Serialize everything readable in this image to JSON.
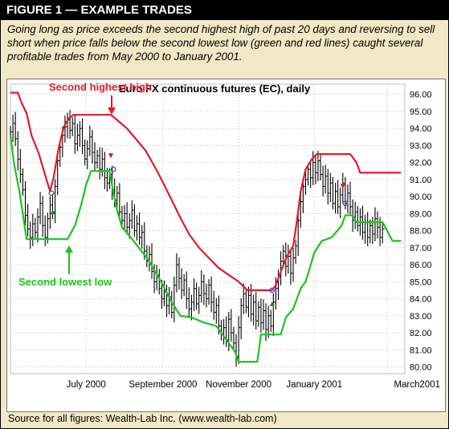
{
  "header": {
    "title": "FIGURE 1 — EXAMPLE TRADES"
  },
  "caption": "Going long as price exceeds the second highest high of past 20 days and reversing to sell short when price falls below the second lowest low (green and red lines) caught several profitable trades from May 2000 to January 2001.",
  "source": "Source for all figures: Wealth-Lab Inc. (www.wealth-lab.com)",
  "colors": {
    "upper_channel": "#e8182e",
    "lower_channel": "#1fc21f",
    "price_bars": "#000000",
    "signal_marker": "#5a50c8",
    "background": "#f1e9c6"
  },
  "chart_data": {
    "type": "line",
    "title": "Euro FX continuous futures (EC), daily",
    "annotations": [
      {
        "text": "Second highest high",
        "color": "#e8182e"
      },
      {
        "text": "Second lowest low",
        "color": "#1fc21f"
      }
    ],
    "x_tick_labels": [
      "July 2000",
      "September 2000",
      "November 2000",
      "January 2001",
      "March2001"
    ],
    "y_ticks": [
      80,
      81,
      82,
      83,
      84,
      85,
      86,
      87,
      88,
      89,
      90,
      91,
      92,
      93,
      94,
      95,
      96
    ],
    "y_tick_labels": [
      "80.00",
      "81.00",
      "82.00",
      "83.00",
      "84.00",
      "85.00",
      "86.00",
      "87.00",
      "88.00",
      "89.00",
      "90.00",
      "91.00",
      "92.00",
      "93.00",
      "94.00",
      "95.00",
      "96.00"
    ],
    "ylim": [
      79.6,
      96.6
    ],
    "x_range": [
      "2000-05-01",
      "2001-03-15"
    ],
    "x_tick_dates": [
      "2000-07-01",
      "2000-09-01",
      "2000-11-01",
      "2001-01-01",
      "2001-03-01"
    ],
    "series": [
      {
        "name": "Second highest high",
        "color": "#e8182e",
        "points": [
          [
            "2000-05-01",
            96.1
          ],
          [
            "2000-05-07",
            96.1
          ],
          [
            "2000-05-10",
            95.5
          ],
          [
            "2000-05-14",
            94.9
          ],
          [
            "2000-05-18",
            93.6
          ],
          [
            "2000-05-24",
            92.5
          ],
          [
            "2000-05-28",
            91.5
          ],
          [
            "2000-06-02",
            90.3
          ],
          [
            "2000-06-05",
            91.2
          ],
          [
            "2000-06-09",
            92.9
          ],
          [
            "2000-06-13",
            94.1
          ],
          [
            "2000-06-17",
            94.6
          ],
          [
            "2000-06-21",
            94.8
          ],
          [
            "2000-07-21",
            94.8
          ],
          [
            "2000-07-26",
            94.5
          ],
          [
            "2000-08-03",
            94.0
          ],
          [
            "2000-08-10",
            93.4
          ],
          [
            "2000-08-18",
            92.7
          ],
          [
            "2000-08-28",
            91.4
          ],
          [
            "2000-09-06",
            90.1
          ],
          [
            "2000-09-14",
            88.9
          ],
          [
            "2000-09-22",
            87.8
          ],
          [
            "2000-09-30",
            87.0
          ],
          [
            "2000-10-08",
            86.4
          ],
          [
            "2000-10-16",
            85.8
          ],
          [
            "2000-10-22",
            85.5
          ],
          [
            "2000-11-01",
            85.0
          ],
          [
            "2000-11-08",
            84.5
          ],
          [
            "2000-11-28",
            84.5
          ],
          [
            "2000-12-01",
            84.8
          ],
          [
            "2000-12-05",
            85.6
          ],
          [
            "2000-12-10",
            86.5
          ],
          [
            "2000-12-15",
            87.1
          ],
          [
            "2000-12-18",
            88.6
          ],
          [
            "2000-12-21",
            90.3
          ],
          [
            "2000-12-25",
            91.6
          ],
          [
            "2000-12-30",
            92.2
          ],
          [
            "2001-01-03",
            92.5
          ],
          [
            "2001-01-30",
            92.5
          ],
          [
            "2001-02-04",
            92.0
          ],
          [
            "2001-02-07",
            91.4
          ],
          [
            "2001-03-12",
            91.4
          ]
        ]
      },
      {
        "name": "Second lowest low",
        "color": "#1fc21f",
        "points": [
          [
            "2000-05-01",
            93.6
          ],
          [
            "2000-05-04",
            91.9
          ],
          [
            "2000-05-08",
            90.4
          ],
          [
            "2000-05-11",
            89.0
          ],
          [
            "2000-05-14",
            87.5
          ],
          [
            "2000-06-16",
            87.5
          ],
          [
            "2000-06-22",
            88.3
          ],
          [
            "2000-06-27",
            89.5
          ],
          [
            "2000-07-01",
            90.7
          ],
          [
            "2000-07-05",
            91.5
          ],
          [
            "2000-07-20",
            91.5
          ],
          [
            "2000-07-23",
            90.2
          ],
          [
            "2000-07-26",
            89.2
          ],
          [
            "2000-07-30",
            88.2
          ],
          [
            "2000-08-06",
            87.6
          ],
          [
            "2000-08-20",
            86.3
          ],
          [
            "2000-09-01",
            84.8
          ],
          [
            "2000-09-08",
            83.8
          ],
          [
            "2000-09-15",
            83.0
          ],
          [
            "2000-09-24",
            82.9
          ],
          [
            "2000-10-04",
            82.6
          ],
          [
            "2000-10-14",
            82.4
          ],
          [
            "2000-10-22",
            81.6
          ],
          [
            "2000-10-29",
            80.9
          ],
          [
            "2000-11-01",
            80.3
          ],
          [
            "2000-11-16",
            80.3
          ],
          [
            "2000-11-19",
            81.9
          ],
          [
            "2000-12-05",
            81.9
          ],
          [
            "2000-12-09",
            82.9
          ],
          [
            "2000-12-15",
            83.4
          ],
          [
            "2000-12-21",
            84.6
          ],
          [
            "2000-12-25",
            85.0
          ],
          [
            "2001-01-01",
            86.7
          ],
          [
            "2001-01-07",
            87.4
          ],
          [
            "2001-01-15",
            87.6
          ],
          [
            "2001-01-23",
            88.3
          ],
          [
            "2001-01-26",
            88.9
          ],
          [
            "2001-02-01",
            88.9
          ],
          [
            "2001-02-04",
            88.5
          ],
          [
            "2001-02-25",
            88.5
          ],
          [
            "2001-03-05",
            87.4
          ],
          [
            "2001-03-12",
            87.4
          ]
        ]
      },
      {
        "name": "",
        "type": "ohlc-close",
        "color": "#000000",
        "points": [
          [
            "2000-05-01",
            93.8
          ],
          [
            "2000-05-03",
            94.3
          ],
          [
            "2000-05-05",
            93.4
          ],
          [
            "2000-05-07",
            92.2
          ],
          [
            "2000-05-09",
            91.3
          ],
          [
            "2000-05-11",
            90.4
          ],
          [
            "2000-05-13",
            88.9
          ],
          [
            "2000-05-15",
            88.1
          ],
          [
            "2000-05-17",
            87.6
          ],
          [
            "2000-05-19",
            88.4
          ],
          [
            "2000-05-21",
            87.9
          ],
          [
            "2000-05-23",
            88.8
          ],
          [
            "2000-05-25",
            89.6
          ],
          [
            "2000-05-27",
            88.3
          ],
          [
            "2000-05-29",
            87.6
          ],
          [
            "2000-05-31",
            88.7
          ],
          [
            "2000-06-02",
            89.5
          ],
          [
            "2000-06-04",
            89.1
          ],
          [
            "2000-06-06",
            90.6
          ],
          [
            "2000-06-08",
            92.1
          ],
          [
            "2000-06-10",
            92.9
          ],
          [
            "2000-06-12",
            93.6
          ],
          [
            "2000-06-14",
            94.1
          ],
          [
            "2000-06-16",
            94.5
          ],
          [
            "2000-06-18",
            93.9
          ],
          [
            "2000-06-20",
            94.3
          ],
          [
            "2000-06-22",
            93.1
          ],
          [
            "2000-06-24",
            93.6
          ],
          [
            "2000-06-26",
            94.0
          ],
          [
            "2000-06-28",
            93.0
          ],
          [
            "2000-06-30",
            92.2
          ],
          [
            "2000-07-02",
            92.8
          ],
          [
            "2000-07-04",
            93.5
          ],
          [
            "2000-07-06",
            92.6
          ],
          [
            "2000-07-08",
            92.0
          ],
          [
            "2000-07-10",
            92.4
          ],
          [
            "2000-07-12",
            91.6
          ],
          [
            "2000-07-14",
            92.2
          ],
          [
            "2000-07-16",
            91.1
          ],
          [
            "2000-07-18",
            90.8
          ],
          [
            "2000-07-20",
            91.3
          ],
          [
            "2000-07-22",
            90.4
          ],
          [
            "2000-07-24",
            89.8
          ],
          [
            "2000-07-26",
            90.2
          ],
          [
            "2000-07-28",
            89.1
          ],
          [
            "2000-07-30",
            88.6
          ],
          [
            "2000-08-01",
            89.0
          ],
          [
            "2000-08-03",
            88.2
          ],
          [
            "2000-08-05",
            88.6
          ],
          [
            "2000-08-07",
            89.2
          ],
          [
            "2000-08-09",
            88.0
          ],
          [
            "2000-08-11",
            88.4
          ],
          [
            "2000-08-13",
            87.6
          ],
          [
            "2000-08-15",
            87.9
          ],
          [
            "2000-08-17",
            86.8
          ],
          [
            "2000-08-19",
            86.2
          ],
          [
            "2000-08-21",
            86.6
          ],
          [
            "2000-08-23",
            85.6
          ],
          [
            "2000-08-25",
            85.0
          ],
          [
            "2000-08-27",
            85.4
          ],
          [
            "2000-08-29",
            84.6
          ],
          [
            "2000-08-31",
            84.0
          ],
          [
            "2000-09-02",
            84.4
          ],
          [
            "2000-09-04",
            83.6
          ],
          [
            "2000-09-06",
            84.1
          ],
          [
            "2000-09-08",
            83.2
          ],
          [
            "2000-09-10",
            84.8
          ],
          [
            "2000-09-12",
            86.0
          ],
          [
            "2000-09-14",
            85.2
          ],
          [
            "2000-09-16",
            84.5
          ],
          [
            "2000-09-18",
            85.1
          ],
          [
            "2000-09-20",
            84.0
          ],
          [
            "2000-09-22",
            83.4
          ],
          [
            "2000-09-24",
            83.8
          ],
          [
            "2000-09-26",
            84.6
          ],
          [
            "2000-09-28",
            83.7
          ],
          [
            "2000-09-30",
            84.2
          ],
          [
            "2000-10-02",
            85.0
          ],
          [
            "2000-10-04",
            84.3
          ],
          [
            "2000-10-06",
            84.0
          ],
          [
            "2000-10-08",
            84.8
          ],
          [
            "2000-10-10",
            83.8
          ],
          [
            "2000-10-12",
            83.2
          ],
          [
            "2000-10-14",
            83.6
          ],
          [
            "2000-10-16",
            82.4
          ],
          [
            "2000-10-18",
            81.9
          ],
          [
            "2000-10-20",
            82.3
          ],
          [
            "2000-10-22",
            81.6
          ],
          [
            "2000-10-24",
            82.8
          ],
          [
            "2000-10-26",
            82.0
          ],
          [
            "2000-10-28",
            81.4
          ],
          [
            "2000-10-30",
            80.6
          ],
          [
            "2000-11-01",
            82.3
          ],
          [
            "2000-11-03",
            83.6
          ],
          [
            "2000-11-05",
            84.3
          ],
          [
            "2000-11-07",
            83.5
          ],
          [
            "2000-11-09",
            84.2
          ],
          [
            "2000-11-11",
            83.1
          ],
          [
            "2000-11-13",
            83.8
          ],
          [
            "2000-11-15",
            82.7
          ],
          [
            "2000-11-17",
            83.5
          ],
          [
            "2000-11-19",
            82.6
          ],
          [
            "2000-11-21",
            83.3
          ],
          [
            "2000-11-23",
            82.2
          ],
          [
            "2000-11-25",
            83.0
          ],
          [
            "2000-11-27",
            82.4
          ],
          [
            "2000-11-29",
            83.8
          ],
          [
            "2000-12-01",
            84.6
          ],
          [
            "2000-12-03",
            85.3
          ],
          [
            "2000-12-05",
            86.2
          ],
          [
            "2000-12-07",
            86.8
          ],
          [
            "2000-12-09",
            85.9
          ],
          [
            "2000-12-11",
            86.5
          ],
          [
            "2000-12-13",
            85.5
          ],
          [
            "2000-12-15",
            86.4
          ],
          [
            "2000-12-17",
            87.1
          ],
          [
            "2000-12-19",
            88.6
          ],
          [
            "2000-12-21",
            89.7
          ],
          [
            "2000-12-23",
            90.6
          ],
          [
            "2000-12-25",
            91.0
          ],
          [
            "2000-12-27",
            91.6
          ],
          [
            "2000-12-29",
            91.1
          ],
          [
            "2000-12-31",
            92.0
          ],
          [
            "2001-01-02",
            91.4
          ],
          [
            "2001-01-04",
            92.1
          ],
          [
            "2001-01-06",
            91.3
          ],
          [
            "2001-01-08",
            90.6
          ],
          [
            "2001-01-10",
            91.2
          ],
          [
            "2001-01-12",
            90.2
          ],
          [
            "2001-01-14",
            90.8
          ],
          [
            "2001-01-16",
            89.6
          ],
          [
            "2001-01-18",
            90.3
          ],
          [
            "2001-01-20",
            89.4
          ],
          [
            "2001-01-22",
            90.1
          ],
          [
            "2001-01-24",
            90.8
          ],
          [
            "2001-01-26",
            89.6
          ],
          [
            "2001-01-28",
            90.2
          ],
          [
            "2001-01-30",
            89.4
          ],
          [
            "2001-02-01",
            88.6
          ],
          [
            "2001-02-03",
            89.1
          ],
          [
            "2001-02-05",
            88.3
          ],
          [
            "2001-02-07",
            88.8
          ],
          [
            "2001-02-09",
            87.9
          ],
          [
            "2001-02-11",
            88.5
          ],
          [
            "2001-02-13",
            87.6
          ],
          [
            "2001-02-15",
            88.3
          ],
          [
            "2001-02-17",
            87.8
          ],
          [
            "2001-02-19",
            88.7
          ],
          [
            "2001-02-21",
            88.2
          ],
          [
            "2001-02-23",
            87.6
          ],
          [
            "2001-02-25",
            88.1
          ]
        ]
      }
    ],
    "signals": [
      {
        "date": "2000-06-03",
        "value": 90.2,
        "kind": "circle"
      },
      {
        "date": "2000-07-23",
        "value": 91.6,
        "kind": "circle"
      },
      {
        "date": "2000-11-28",
        "value": 84.5,
        "kind": "circle"
      },
      {
        "date": "2001-01-26",
        "value": 89.6,
        "kind": "circle"
      }
    ],
    "grid": true,
    "y_axis_side": "right"
  }
}
